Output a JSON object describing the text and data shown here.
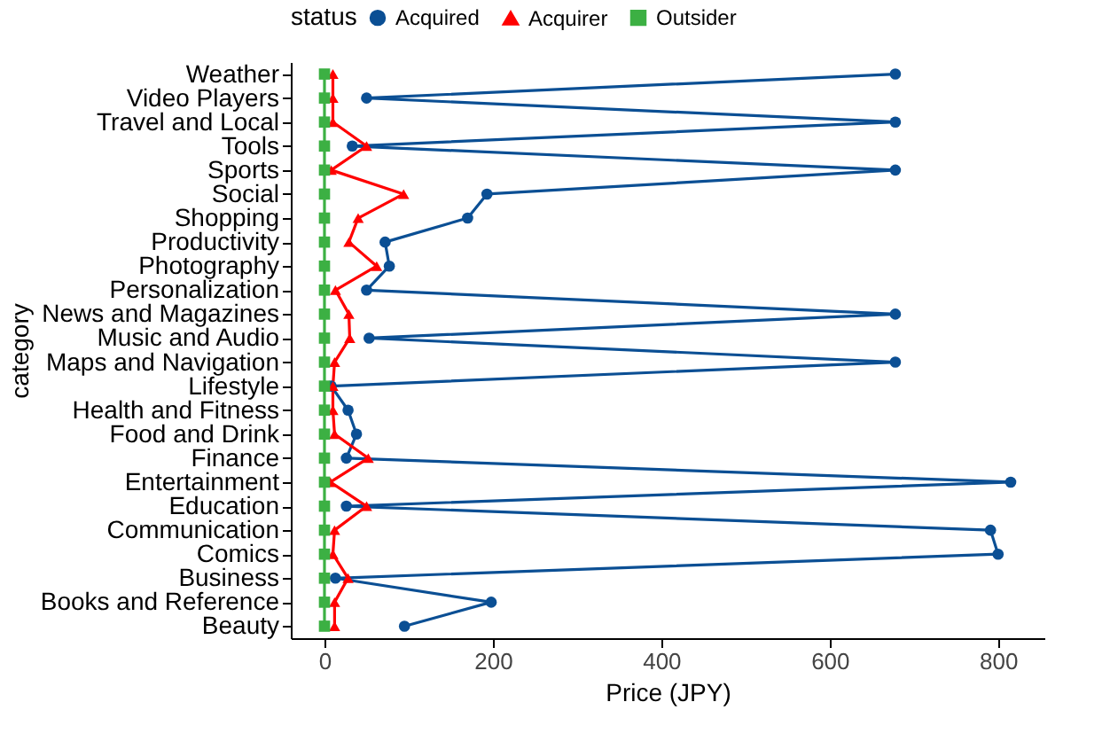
{
  "chart_data": {
    "type": "line",
    "xlabel": "Price (JPY)",
    "ylabel": "category",
    "legend_title": "status",
    "legend": "top",
    "categories": [
      "Weather",
      "Video Players",
      "Travel and Local",
      "Tools",
      "Sports",
      "Social",
      "Shopping",
      "Productivity",
      "Photography",
      "Personalization",
      "News and Magazines",
      "Music and Audio",
      "Maps and Navigation",
      "Lifestyle",
      "Health and Fitness",
      "Food and Drink",
      "Finance",
      "Entertainment",
      "Education",
      "Communication",
      "Comics",
      "Business",
      "Books and Reference",
      "Beauty"
    ],
    "orientation": "horizontal",
    "xlim": [
      -40,
      855
    ],
    "xticks": [
      0,
      200,
      400,
      600,
      800
    ],
    "grid": false,
    "series": [
      {
        "name": "Acquired",
        "color": "#0b4f94",
        "marker": "circle",
        "values": [
          678,
          50,
          678,
          33,
          678,
          193,
          170,
          72,
          77,
          50,
          678,
          53,
          678,
          8,
          28,
          38,
          26,
          815,
          26,
          791,
          800,
          13,
          198,
          95
        ]
      },
      {
        "name": "Acquirer",
        "color": "#ff0000",
        "marker": "triangle",
        "values": [
          10,
          10,
          10,
          50,
          8,
          94,
          40,
          29,
          62,
          13,
          29,
          30,
          12,
          10,
          10,
          12,
          52,
          7,
          50,
          12,
          10,
          28,
          12,
          12
        ]
      },
      {
        "name": "Outsider",
        "color": "#3cb043",
        "marker": "square",
        "values": [
          0,
          0,
          0,
          0,
          0,
          0,
          0,
          0,
          0,
          0,
          0,
          0,
          0,
          0,
          0,
          0,
          0,
          0,
          0,
          0,
          0,
          0,
          0,
          0
        ]
      }
    ]
  }
}
